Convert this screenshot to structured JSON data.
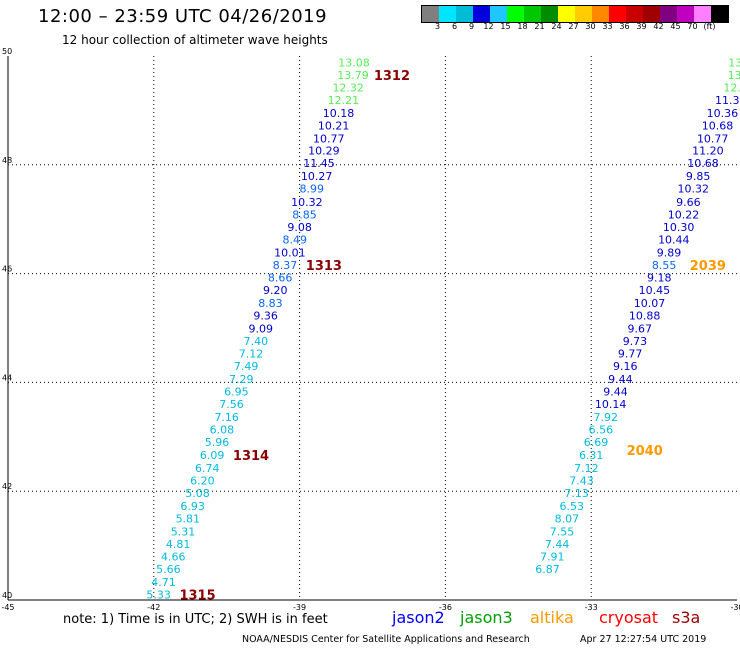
{
  "title": "12:00 – 23:59 UTC 04/26/2019",
  "subtitle": "12 hour collection of altimeter wave heights",
  "legend": {
    "colors": [
      "#7f7f7f",
      "#00e5ff",
      "#00bcd4",
      "#0000dd",
      "#1ec8ff",
      "#00ff00",
      "#00c800",
      "#008c00",
      "#ffff00",
      "#ffcc00",
      "#ff8800",
      "#ff0000",
      "#c80000",
      "#a00000",
      "#800080",
      "#c000c0",
      "#ff80ff",
      "#000000"
    ],
    "labels": [
      "3",
      "6",
      "9",
      "12",
      "15",
      "18",
      "21",
      "24",
      "27",
      "30",
      "33",
      "36",
      "39",
      "42",
      "45",
      "70",
      "(ft)"
    ]
  },
  "note": "note: 1) Time is in UTC; 2) SWH is in feet",
  "missions": [
    {
      "label": "jason2",
      "color": "#0000ff"
    },
    {
      "label": "jason3",
      "color": "#00a000"
    },
    {
      "label": "altika",
      "color": "#ff9900"
    },
    {
      "label": "cryosat",
      "color": "#ff0000"
    },
    {
      "label": "s3a",
      "color": "#9b0000"
    }
  ],
  "credit": "NOAA/NESDIS Center for Satellite Applications and Research",
  "timestamp": "Apr 27 12:27:54 UTC 2019",
  "chart_data": {
    "type": "scatter",
    "xlim": [
      -45,
      -30
    ],
    "ylim": [
      40,
      50
    ],
    "xticks": [
      "-45",
      "-42",
      "-39",
      "-36",
      "-33",
      "-30"
    ],
    "yticks": [
      "40",
      "42",
      "44",
      "46",
      "48",
      "50"
    ],
    "grid": true,
    "colors": {
      "light_green": "#55ee55",
      "navy": "#0000cc",
      "blue": "#0a66ee",
      "cyan": "#00bbdd",
      "maroon": "#8b0000",
      "orange": "#ff9900"
    },
    "track1": [
      {
        "x": -37.88,
        "y": 49.88,
        "v": "13.08",
        "c": "light_green"
      },
      {
        "x": -37.9,
        "y": 49.65,
        "v": "13.79",
        "c": "light_green"
      },
      {
        "x": -38.0,
        "y": 49.42,
        "v": "12.32",
        "c": "light_green"
      },
      {
        "x": -38.1,
        "y": 49.19,
        "v": "12.21",
        "c": "light_green"
      },
      {
        "x": -38.2,
        "y": 48.95,
        "v": "10.18",
        "c": "navy"
      },
      {
        "x": -38.3,
        "y": 48.72,
        "v": "10.21",
        "c": "navy"
      },
      {
        "x": -38.4,
        "y": 48.48,
        "v": "10.77",
        "c": "navy"
      },
      {
        "x": -38.5,
        "y": 48.26,
        "v": "10.29",
        "c": "navy"
      },
      {
        "x": -38.6,
        "y": 48.03,
        "v": "11.45",
        "c": "navy"
      },
      {
        "x": -38.65,
        "y": 47.79,
        "v": "10.27",
        "c": "navy"
      },
      {
        "x": -38.75,
        "y": 47.56,
        "v": "8.99",
        "c": "blue"
      },
      {
        "x": -38.85,
        "y": 47.32,
        "v": "10.32",
        "c": "navy"
      },
      {
        "x": -38.9,
        "y": 47.09,
        "v": "8.85",
        "c": "blue"
      },
      {
        "x": -39.0,
        "y": 46.86,
        "v": "9.08",
        "c": "navy"
      },
      {
        "x": -39.1,
        "y": 46.63,
        "v": "8.49",
        "c": "blue"
      },
      {
        "x": -39.2,
        "y": 46.39,
        "v": "10.01",
        "c": "navy"
      },
      {
        "x": -39.3,
        "y": 46.16,
        "v": "8.37",
        "c": "blue"
      },
      {
        "x": -39.4,
        "y": 45.93,
        "v": "8.66",
        "c": "blue"
      },
      {
        "x": -39.5,
        "y": 45.7,
        "v": "9.20",
        "c": "navy"
      },
      {
        "x": -39.6,
        "y": 45.46,
        "v": "8.83",
        "c": "blue"
      },
      {
        "x": -39.7,
        "y": 45.23,
        "v": "9.36",
        "c": "navy"
      },
      {
        "x": -39.8,
        "y": 44.99,
        "v": "9.09",
        "c": "navy"
      },
      {
        "x": -39.9,
        "y": 44.76,
        "v": "7.40",
        "c": "cyan"
      },
      {
        "x": -40.0,
        "y": 44.53,
        "v": "7.12",
        "c": "cyan"
      },
      {
        "x": -40.1,
        "y": 44.3,
        "v": "7.49",
        "c": "cyan"
      },
      {
        "x": -40.2,
        "y": 44.06,
        "v": "7.29",
        "c": "cyan"
      },
      {
        "x": -40.3,
        "y": 43.83,
        "v": "6.95",
        "c": "cyan"
      },
      {
        "x": -40.4,
        "y": 43.6,
        "v": "7.56",
        "c": "cyan"
      },
      {
        "x": -40.5,
        "y": 43.36,
        "v": "7.16",
        "c": "cyan"
      },
      {
        "x": -40.6,
        "y": 43.13,
        "v": "6.08",
        "c": "cyan"
      },
      {
        "x": -40.7,
        "y": 42.9,
        "v": "5.96",
        "c": "cyan"
      },
      {
        "x": -40.8,
        "y": 42.67,
        "v": "6.09",
        "c": "cyan"
      },
      {
        "x": -40.9,
        "y": 42.43,
        "v": "6.74",
        "c": "cyan"
      },
      {
        "x": -41.0,
        "y": 42.2,
        "v": "6.20",
        "c": "cyan"
      },
      {
        "x": -41.1,
        "y": 41.97,
        "v": "5.08",
        "c": "cyan"
      },
      {
        "x": -41.2,
        "y": 41.73,
        "v": "6.93",
        "c": "cyan"
      },
      {
        "x": -41.3,
        "y": 41.5,
        "v": "5.81",
        "c": "cyan"
      },
      {
        "x": -41.4,
        "y": 41.26,
        "v": "5.31",
        "c": "cyan"
      },
      {
        "x": -41.5,
        "y": 41.03,
        "v": "4.81",
        "c": "cyan"
      },
      {
        "x": -41.6,
        "y": 40.8,
        "v": "4.66",
        "c": "cyan"
      },
      {
        "x": -41.7,
        "y": 40.57,
        "v": "5.66",
        "c": "cyan"
      },
      {
        "x": -41.8,
        "y": 40.33,
        "v": "4.71",
        "c": "cyan"
      },
      {
        "x": -41.9,
        "y": 40.1,
        "v": "5.33",
        "c": "cyan"
      }
    ],
    "track2": [
      {
        "x": -30.0,
        "y": 49.88,
        "v": "13.",
        "c": "light_green"
      },
      {
        "x": -30.05,
        "y": 49.65,
        "v": "13",
        "c": "light_green"
      },
      {
        "x": -30.1,
        "y": 49.42,
        "v": "12.",
        "c": "light_green"
      },
      {
        "x": -30.2,
        "y": 49.19,
        "v": "11.3",
        "c": "navy"
      },
      {
        "x": -30.3,
        "y": 48.95,
        "v": "10.36",
        "c": "navy"
      },
      {
        "x": -30.4,
        "y": 48.72,
        "v": "10.68",
        "c": "navy"
      },
      {
        "x": -30.5,
        "y": 48.48,
        "v": "10.77",
        "c": "navy"
      },
      {
        "x": -30.6,
        "y": 48.26,
        "v": "11.20",
        "c": "navy"
      },
      {
        "x": -30.7,
        "y": 48.03,
        "v": "10.68",
        "c": "navy"
      },
      {
        "x": -30.8,
        "y": 47.79,
        "v": "9.85",
        "c": "navy"
      },
      {
        "x": -30.9,
        "y": 47.56,
        "v": "10.32",
        "c": "navy"
      },
      {
        "x": -31.0,
        "y": 47.32,
        "v": "9.66",
        "c": "navy"
      },
      {
        "x": -31.1,
        "y": 47.09,
        "v": "10.22",
        "c": "navy"
      },
      {
        "x": -31.2,
        "y": 46.86,
        "v": "10.30",
        "c": "navy"
      },
      {
        "x": -31.3,
        "y": 46.63,
        "v": "10.44",
        "c": "navy"
      },
      {
        "x": -31.4,
        "y": 46.39,
        "v": "9.89",
        "c": "navy"
      },
      {
        "x": -31.5,
        "y": 46.16,
        "v": "8.55",
        "c": "blue"
      },
      {
        "x": -31.6,
        "y": 45.93,
        "v": "9.18",
        "c": "navy"
      },
      {
        "x": -31.7,
        "y": 45.7,
        "v": "10.45",
        "c": "navy"
      },
      {
        "x": -31.8,
        "y": 45.46,
        "v": "10.07",
        "c": "navy"
      },
      {
        "x": -31.9,
        "y": 45.23,
        "v": "10.88",
        "c": "navy"
      },
      {
        "x": -32.0,
        "y": 44.99,
        "v": "9.67",
        "c": "navy"
      },
      {
        "x": -32.1,
        "y": 44.76,
        "v": "9.73",
        "c": "navy"
      },
      {
        "x": -32.2,
        "y": 44.53,
        "v": "9.77",
        "c": "navy"
      },
      {
        "x": -32.3,
        "y": 44.3,
        "v": "9.16",
        "c": "navy"
      },
      {
        "x": -32.4,
        "y": 44.06,
        "v": "9.44",
        "c": "navy"
      },
      {
        "x": -32.5,
        "y": 43.83,
        "v": "9.44",
        "c": "navy"
      },
      {
        "x": -32.6,
        "y": 43.6,
        "v": "10.14",
        "c": "navy"
      },
      {
        "x": -32.7,
        "y": 43.36,
        "v": "7.92",
        "c": "cyan"
      },
      {
        "x": -32.8,
        "y": 43.13,
        "v": "6.56",
        "c": "cyan"
      },
      {
        "x": -32.9,
        "y": 42.9,
        "v": "6.69",
        "c": "cyan"
      },
      {
        "x": -33.0,
        "y": 42.67,
        "v": "6.31",
        "c": "cyan"
      },
      {
        "x": -33.1,
        "y": 42.43,
        "v": "7.12",
        "c": "cyan"
      },
      {
        "x": -33.2,
        "y": 42.2,
        "v": "7.43",
        "c": "cyan"
      },
      {
        "x": -33.3,
        "y": 41.97,
        "v": "7.13",
        "c": "cyan"
      },
      {
        "x": -33.4,
        "y": 41.73,
        "v": "6.53",
        "c": "cyan"
      },
      {
        "x": -33.5,
        "y": 41.5,
        "v": "8.07",
        "c": "cyan"
      },
      {
        "x": -33.6,
        "y": 41.26,
        "v": "7.55",
        "c": "cyan"
      },
      {
        "x": -33.7,
        "y": 41.03,
        "v": "7.44",
        "c": "cyan"
      },
      {
        "x": -33.8,
        "y": 40.8,
        "v": "7.91",
        "c": "cyan"
      },
      {
        "x": -33.9,
        "y": 40.57,
        "v": "6.87",
        "c": "cyan"
      }
    ],
    "time_labels": [
      {
        "x": -37.1,
        "y": 49.65,
        "label": "1312",
        "c": "maroon"
      },
      {
        "x": -38.5,
        "y": 46.16,
        "label": "1313",
        "c": "maroon"
      },
      {
        "x": -40.0,
        "y": 42.67,
        "label": "1314",
        "c": "maroon"
      },
      {
        "x": -41.1,
        "y": 40.1,
        "label": "1315",
        "c": "maroon"
      },
      {
        "x": -30.6,
        "y": 46.16,
        "label": "2039",
        "c": "orange"
      },
      {
        "x": -31.9,
        "y": 42.76,
        "label": "2040",
        "c": "orange"
      }
    ]
  }
}
